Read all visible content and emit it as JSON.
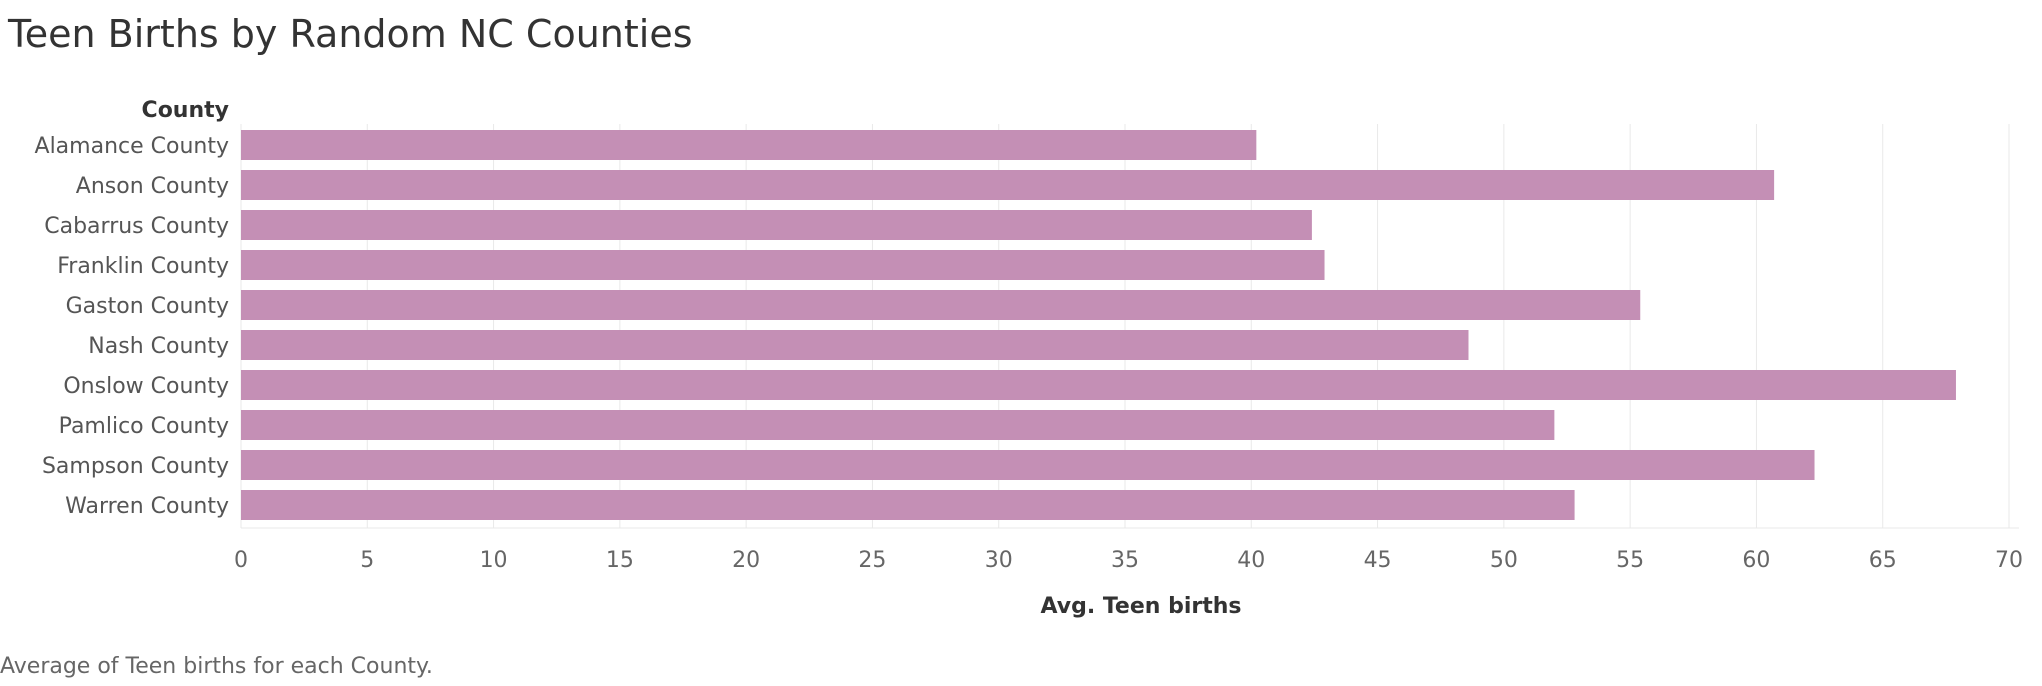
{
  "title": "Teen Births by Random NC Counties",
  "footnote": "Average of Teen births for each County.",
  "colors": {
    "bar": "#c48fb5",
    "grid": "#e9e9e9",
    "text": "#555555"
  },
  "chart_data": {
    "type": "bar",
    "orientation": "horizontal",
    "title": "Teen Births by Random NC Counties",
    "ylabel": "County",
    "xlabel": "Avg. Teen births",
    "xlim": [
      0,
      70
    ],
    "xticks": [
      0,
      5,
      10,
      15,
      20,
      25,
      30,
      35,
      40,
      45,
      50,
      55,
      60,
      65,
      70
    ],
    "grid": true,
    "categories": [
      "Alamance County",
      "Anson County",
      "Cabarrus County",
      "Franklin County",
      "Gaston County",
      "Nash County",
      "Onslow County",
      "Pamlico County",
      "Sampson County",
      "Warren County"
    ],
    "values": [
      40.2,
      60.7,
      42.4,
      42.9,
      55.4,
      48.6,
      67.9,
      52.0,
      62.3,
      52.8
    ]
  }
}
